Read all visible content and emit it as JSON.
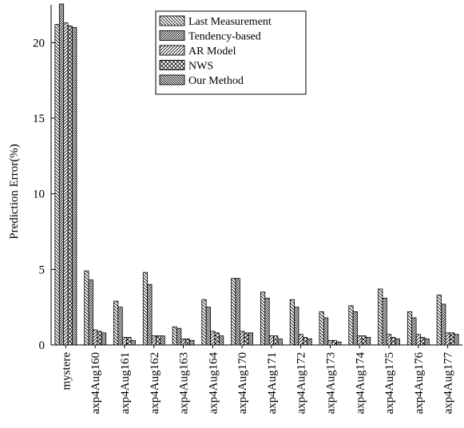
{
  "chart_data": {
    "type": "bar",
    "title": "",
    "xlabel": "",
    "ylabel": "Prediction Error(%)",
    "ylim": [
      0,
      22.5
    ],
    "yticks": [
      "0",
      "5",
      "10",
      "15",
      "20"
    ],
    "grid": false,
    "legend_position": "top-center",
    "categories": [
      "mystere",
      "axp4Aug160",
      "axp4Aug161",
      "axp4Aug162",
      "axp4Aug163",
      "axp4Aug164",
      "axp4Aug170",
      "axp4Aug171",
      "axp4Aug172",
      "axp4Aug173",
      "axp4Aug174",
      "axp4Aug175",
      "axp4Aug176",
      "axp4Aug177"
    ],
    "series": [
      {
        "name": "Last Measurement",
        "pattern": "hatch-back",
        "values": [
          21.2,
          4.9,
          2.9,
          4.8,
          1.2,
          3.0,
          4.4,
          3.5,
          3.0,
          2.2,
          2.6,
          3.7,
          2.2,
          3.3
        ]
      },
      {
        "name": "Tendency-based",
        "pattern": "hatch-forward-dense",
        "values": [
          22.6,
          4.3,
          2.5,
          4.0,
          1.1,
          2.5,
          4.4,
          3.1,
          2.5,
          1.8,
          2.2,
          3.1,
          1.8,
          2.7
        ]
      },
      {
        "name": "AR Model",
        "pattern": "hatch-forward",
        "values": [
          21.3,
          1.0,
          0.5,
          0.6,
          0.4,
          0.9,
          0.9,
          0.6,
          0.7,
          0.3,
          0.6,
          0.7,
          0.7,
          0.8
        ]
      },
      {
        "name": "NWS",
        "pattern": "cross",
        "values": [
          21.1,
          0.9,
          0.5,
          0.6,
          0.4,
          0.8,
          0.8,
          0.6,
          0.5,
          0.3,
          0.6,
          0.5,
          0.5,
          0.8
        ]
      },
      {
        "name": "Our Method",
        "pattern": "hatch-back-dense",
        "values": [
          21.0,
          0.8,
          0.3,
          0.6,
          0.3,
          0.6,
          0.8,
          0.4,
          0.4,
          0.2,
          0.5,
          0.4,
          0.4,
          0.7
        ]
      }
    ]
  }
}
